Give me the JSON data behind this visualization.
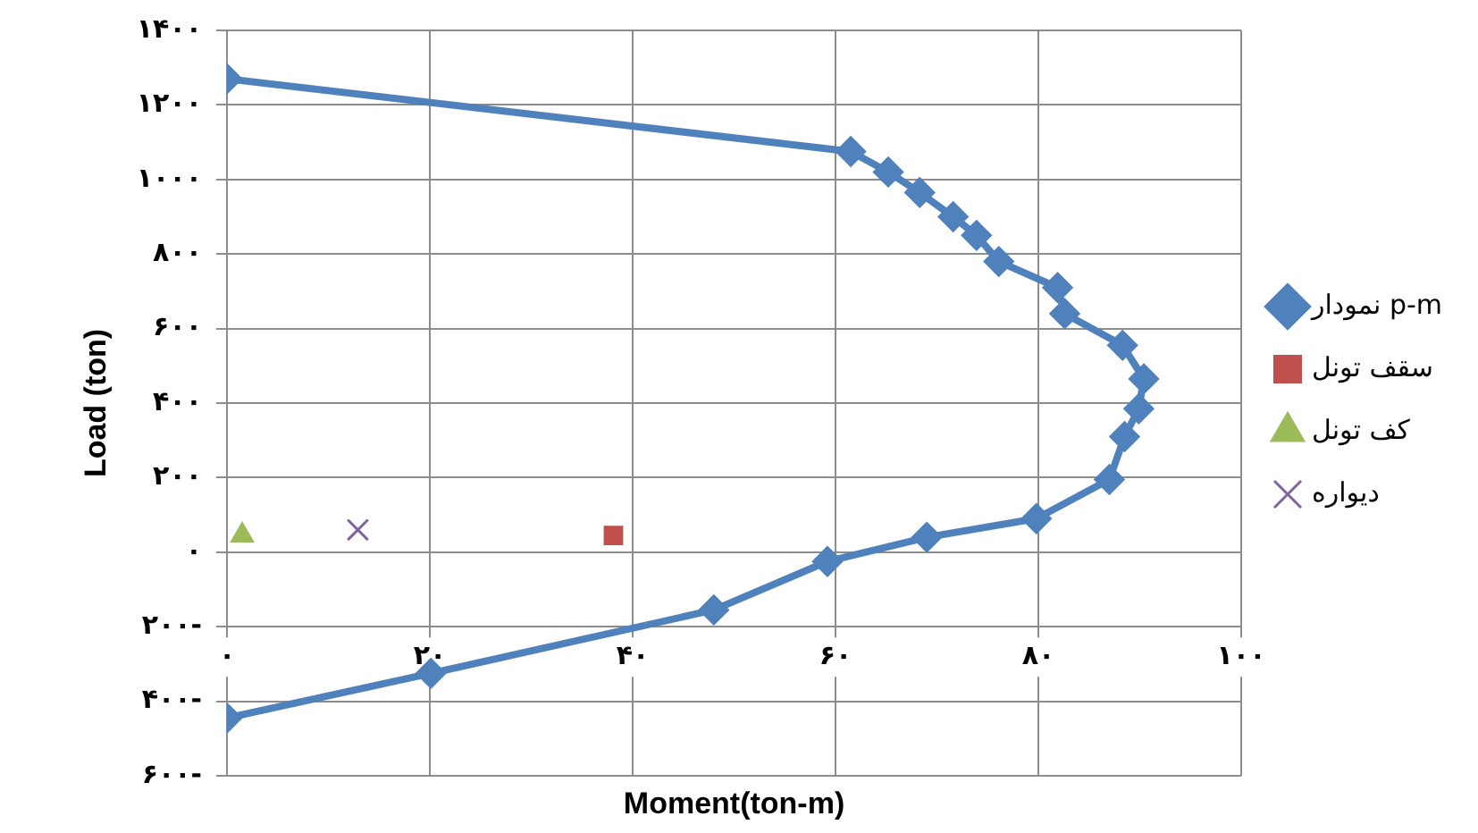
{
  "chart_data": {
    "type": "line",
    "xlabel": "Moment(ton-m)",
    "ylabel": "Load (ton)",
    "xlim": [
      0,
      100
    ],
    "ylim": [
      -600,
      1400
    ],
    "xticks": [
      {
        "value": 0,
        "label": "۰"
      },
      {
        "value": 20,
        "label": "۲۰"
      },
      {
        "value": 40,
        "label": "۴۰"
      },
      {
        "value": 60,
        "label": "۶۰"
      },
      {
        "value": 80,
        "label": "۸۰"
      },
      {
        "value": 100,
        "label": "۱۰۰"
      }
    ],
    "yticks": [
      {
        "value": -600,
        "label": "۶۰۰-"
      },
      {
        "value": -400,
        "label": "۴۰۰-"
      },
      {
        "value": -200,
        "label": "۲۰۰-"
      },
      {
        "value": 0,
        "label": "۰"
      },
      {
        "value": 200,
        "label": "۲۰۰"
      },
      {
        "value": 400,
        "label": "۴۰۰"
      },
      {
        "value": 600,
        "label": "۶۰۰"
      },
      {
        "value": 800,
        "label": "۸۰۰"
      },
      {
        "value": 1000,
        "label": "۱۰۰۰"
      },
      {
        "value": 1200,
        "label": "۱۲۰۰"
      },
      {
        "value": 1400,
        "label": "۱۴۰۰"
      }
    ],
    "grid": true,
    "legend": "right",
    "series": [
      {
        "name": "نمودار p-m",
        "type": "line",
        "color": "#4f81bd",
        "marker": "diamond",
        "x": [
          0,
          61.5,
          65.2,
          68.3,
          71.6,
          73.9,
          76.1,
          81.9,
          82.6,
          88.3,
          90.4,
          89.9,
          88.5,
          87,
          79.8,
          69,
          59.2,
          48,
          20.1,
          0
        ],
        "values": [
          1270,
          1075,
          1020,
          965,
          900,
          850,
          780,
          710,
          640,
          555,
          465,
          385,
          310,
          195,
          90,
          40,
          -25,
          -155,
          -325,
          -445
        ]
      },
      {
        "name": "سقف تونل",
        "type": "scatter",
        "color": "#c0504d",
        "marker": "square",
        "x": [
          38.1
        ],
        "values": [
          45
        ]
      },
      {
        "name": "کف تونل",
        "type": "scatter",
        "color": "#9bbb59",
        "marker": "triangle",
        "x": [
          1.5
        ],
        "values": [
          45
        ]
      },
      {
        "name": "دیواره",
        "type": "scatter",
        "color": "#8064a2",
        "marker": "cross",
        "x": [
          12.9
        ],
        "values": [
          60
        ]
      }
    ]
  }
}
